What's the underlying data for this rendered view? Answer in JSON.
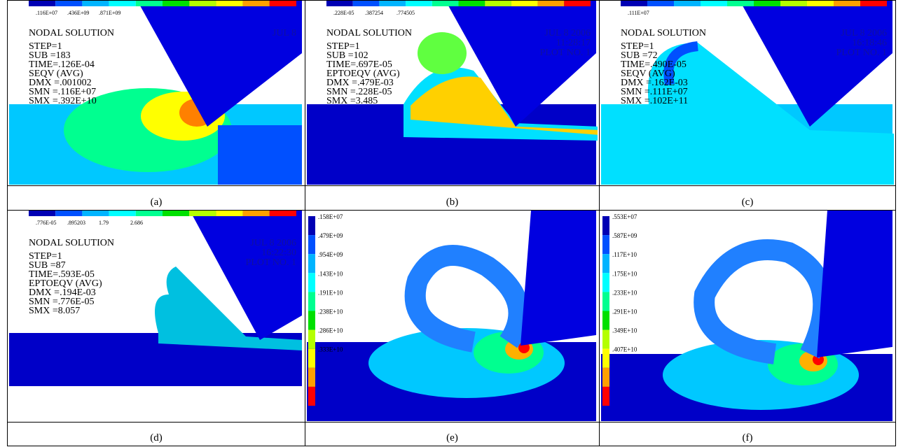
{
  "panels": [
    {
      "label": "(a)",
      "annotations": [
        "NODAL SOLUTION",
        "STEP=1",
        "SUB =183",
        "TIME=.126E-04",
        "SEQV      (AVG)",
        "DMX =.001002",
        "SMN =.116E+07",
        "SMX =.392E+10"
      ],
      "colorbar_labels": [
        ".116E+07",
        ".436E+09",
        ".871E+09"
      ],
      "stamp": [
        "JUL  8"
      ]
    },
    {
      "label": "(b)",
      "annotations": [
        "NODAL SOLUTION",
        "STEP=1",
        "SUB =102",
        "TIME=.697E-05",
        "EPTOEQV  (AVG)",
        "DMX =.479E-03",
        "SMN =.228E-05",
        "SMX =3.485"
      ],
      "colorbar_labels": [
        ".228E-05",
        ".387254",
        ".774505"
      ],
      "stamp": [
        "JUL  8 2006",
        "11:28:17",
        "PLOT NO.   1"
      ]
    },
    {
      "label": "(c)",
      "annotations": [
        "NODAL SOLUTION",
        "STEP=1",
        "SUB =72",
        "TIME=.490E-05",
        "SEQV      (AVG)",
        "DMX =.162E-03",
        "SMN =.111E+07",
        "SMX =.102E+11"
      ],
      "colorbar_labels": [
        ".111E+07"
      ],
      "stamp": [
        "JUL  8 2006",
        "16:18:46",
        "PLOT NO.   1"
      ]
    },
    {
      "label": "(d)",
      "annotations": [
        "NODAL SOLUTION",
        "STEP=1",
        "SUB =87",
        "TIME=.593E-05",
        "EPTOEQV  (AVG)",
        "DMX =.194E-03",
        "SMN =.776E-05",
        "SMX =8.057"
      ],
      "colorbar_labels": [
        ".776E-05",
        ".895203",
        "1.79",
        "2.686"
      ],
      "stamp": [
        "JUL  8 2006",
        "16:22:30",
        "PLOT NO.   1"
      ]
    },
    {
      "label": "(e)",
      "legend_labels": [
        ".158E+07",
        ".479E+09",
        ".954E+09",
        ".143E+10",
        ".191E+10",
        ".238E+10",
        ".286E+10",
        ".333E+10"
      ]
    },
    {
      "label": "(f)",
      "legend_labels": [
        ".553E+07",
        ".587E+09",
        ".117E+10",
        ".175E+10",
        ".233E+10",
        ".291E+10",
        ".349E+10",
        ".407E+10"
      ]
    }
  ]
}
